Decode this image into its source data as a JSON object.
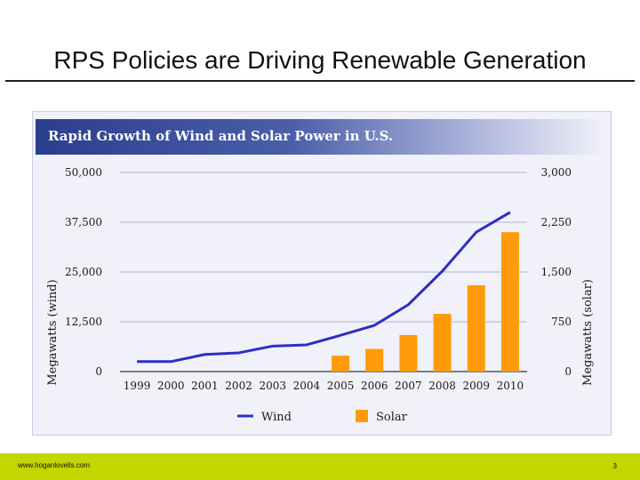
{
  "slide": {
    "title": "RPS Policies are Driving Renewable Generation"
  },
  "footer": {
    "url": "www.hoganlovells.com",
    "page_number": "3"
  },
  "colors": {
    "wind": "#2b2fc4",
    "solar": "#ff9b0a",
    "banner": "#2b3e8c",
    "footer": "#c3d600"
  },
  "chart_data": {
    "type": "bar+line",
    "title": "Rapid Growth of Wind and Solar Power in U.S.",
    "categories": [
      "1999",
      "2000",
      "2001",
      "2002",
      "2003",
      "2004",
      "2005",
      "2006",
      "2007",
      "2008",
      "2009",
      "2010"
    ],
    "y_left": {
      "label": "Megawatts (wind)",
      "lim": [
        0,
        50000
      ],
      "ticks": [
        "0",
        "12,500",
        "25,000",
        "37,500",
        "50,000"
      ]
    },
    "y_right": {
      "label": "Megawatts (solar)",
      "lim": [
        0,
        3000
      ],
      "ticks": [
        "0",
        "750",
        "1,500",
        "2,250",
        "3,000"
      ]
    },
    "grid": true,
    "legend_position": "bottom",
    "series": [
      {
        "name": "Wind",
        "type": "line",
        "axis": "left",
        "values": [
          2500,
          2500,
          4300,
          4700,
          6400,
          6700,
          9100,
          11600,
          16800,
          25200,
          35000,
          40000
        ]
      },
      {
        "name": "Solar",
        "type": "bar",
        "axis": "right",
        "values": [
          null,
          null,
          null,
          null,
          null,
          null,
          240,
          340,
          550,
          870,
          1300,
          2100
        ]
      }
    ]
  }
}
